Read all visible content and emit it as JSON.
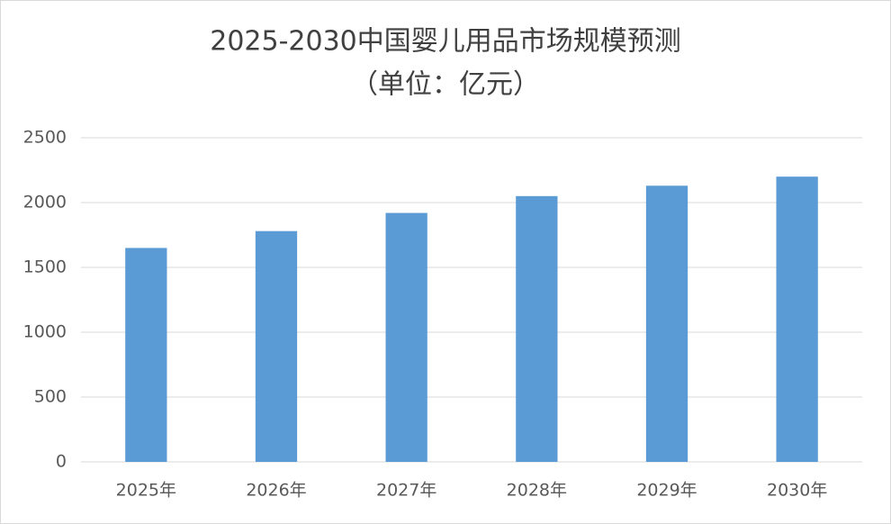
{
  "chart_data": {
    "type": "bar",
    "title": "2025-2030中国婴儿用品市场规模预测",
    "subtitle": "（单位：亿元）",
    "categories": [
      "2025年",
      "2026年",
      "2027年",
      "2028年",
      "2029年",
      "2030年"
    ],
    "values": [
      1650,
      1780,
      1920,
      2050,
      2130,
      2200
    ],
    "color": "#5b9bd5",
    "ylim": [
      0,
      2500
    ],
    "yticks": [
      0,
      500,
      1000,
      1500,
      2000,
      2500
    ],
    "grid": true
  }
}
